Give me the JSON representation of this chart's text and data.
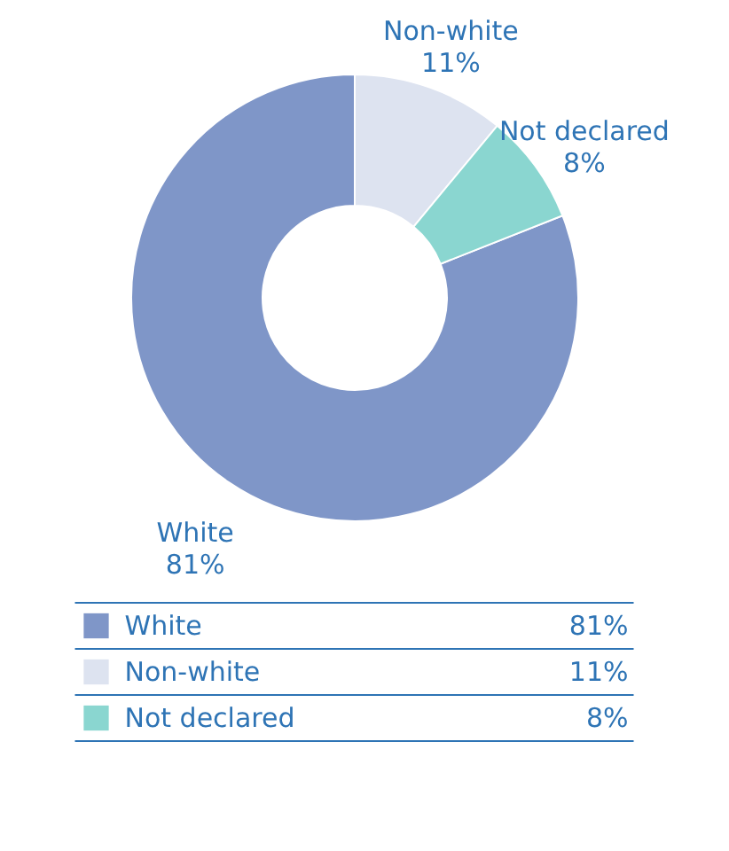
{
  "chart_data": {
    "type": "donut",
    "categories": [
      "White",
      "Non-white",
      "Not declared"
    ],
    "values": [
      81,
      11,
      8
    ],
    "value_labels": [
      "81%",
      "11%",
      "8%"
    ],
    "colors": [
      "#7f96c8",
      "#dde3f0",
      "#8ad6d0"
    ],
    "legend": "bottom"
  }
}
